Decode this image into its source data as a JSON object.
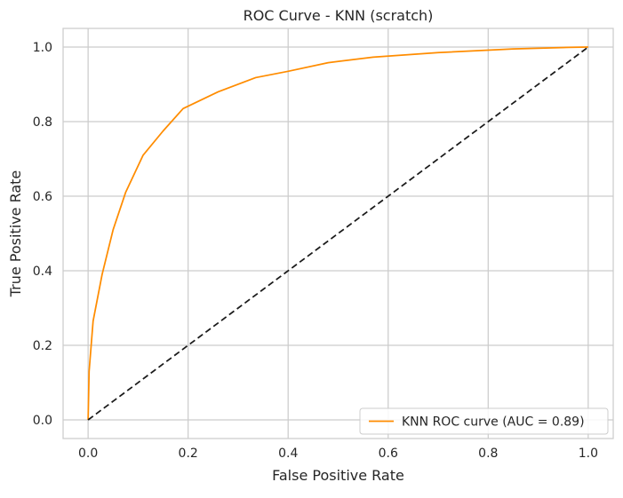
{
  "chart_data": {
    "type": "line",
    "title": "ROC Curve - KNN (scratch)",
    "xlabel": "False Positive Rate",
    "ylabel": "True Positive Rate",
    "xlim": [
      -0.05,
      1.05
    ],
    "ylim": [
      -0.05,
      1.05
    ],
    "xticks": [
      0.0,
      0.2,
      0.4,
      0.6,
      0.8,
      1.0
    ],
    "yticks": [
      0.0,
      0.2,
      0.4,
      0.6,
      0.8,
      1.0
    ],
    "xtick_labels": [
      "0.0",
      "0.2",
      "0.4",
      "0.6",
      "0.8",
      "1.0"
    ],
    "ytick_labels": [
      "0.0",
      "0.2",
      "0.4",
      "0.6",
      "0.8",
      "1.0"
    ],
    "grid": true,
    "legend_position": "lower right",
    "series": [
      {
        "name": "KNN ROC curve (AUC = 0.89)",
        "color": "#ff8c00",
        "style": "solid",
        "x": [
          0.0,
          0.002,
          0.01,
          0.028,
          0.05,
          0.075,
          0.11,
          0.15,
          0.19,
          0.26,
          0.335,
          0.4,
          0.48,
          0.57,
          0.7,
          0.85,
          0.96,
          1.0
        ],
        "y": [
          0.0,
          0.13,
          0.265,
          0.39,
          0.51,
          0.61,
          0.71,
          0.775,
          0.835,
          0.88,
          0.918,
          0.935,
          0.958,
          0.973,
          0.985,
          0.995,
          0.999,
          1.0
        ]
      },
      {
        "color": "#1a1a1a",
        "style": "dashed",
        "x": [
          0.0,
          1.0
        ],
        "y": [
          0.0,
          1.0
        ]
      }
    ]
  }
}
